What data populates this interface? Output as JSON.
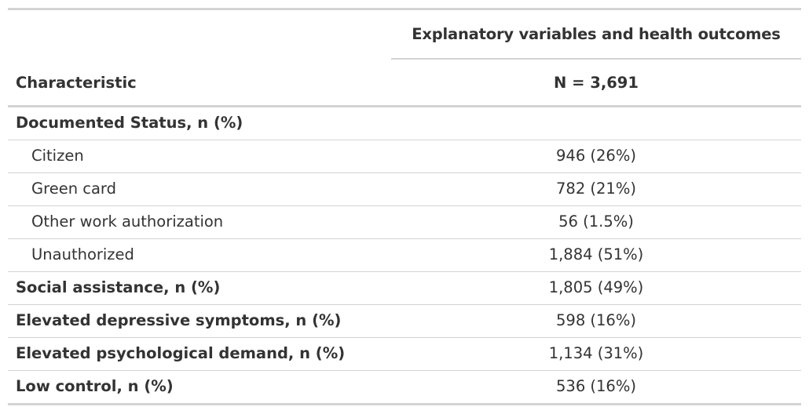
{
  "table": {
    "spanner": "Explanatory variables and health outcomes",
    "header": {
      "characteristic": "Characteristic",
      "n": "N = 3,691"
    },
    "rows": [
      {
        "label": "Documented Status, n (%)",
        "value": ""
      },
      {
        "label": "Citizen",
        "value": "946 (26%)"
      },
      {
        "label": "Green card",
        "value": "782 (21%)"
      },
      {
        "label": "Other work authorization",
        "value": "56 (1.5%)"
      },
      {
        "label": "Unauthorized",
        "value": "1,884 (51%)"
      },
      {
        "label": "Social assistance, n (%)",
        "value": "1,805 (49%)"
      },
      {
        "label": "Elevated depressive symptoms, n (%)",
        "value": "598 (16%)"
      },
      {
        "label": "Elevated psychological demand, n (%)",
        "value": "1,134 (31%)"
      },
      {
        "label": "Low control, n (%)",
        "value": "536 (16%)"
      }
    ]
  }
}
